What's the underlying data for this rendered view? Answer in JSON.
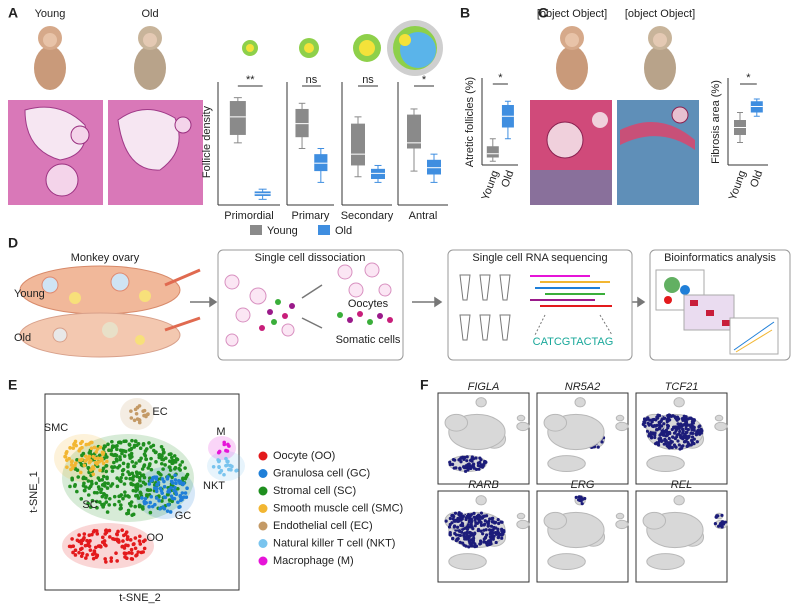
{
  "panel_a": {
    "label": "A",
    "young": "Young",
    "old": "Old",
    "y_label": "Follicle density",
    "legend": {
      "young": "Young",
      "old": "Old"
    },
    "colors": {
      "young": "#8a8a8a",
      "old": "#3f8ee0"
    },
    "plots": [
      {
        "category": "Primordial",
        "significance": "**",
        "young": {
          "min": 0.55,
          "q1": 0.62,
          "median": 0.78,
          "q3": 0.92,
          "max": 0.95
        },
        "old": {
          "min": 0.05,
          "q1": 0.08,
          "median": 0.1,
          "q3": 0.12,
          "max": 0.14
        }
      },
      {
        "category": "Primary",
        "significance": "ns",
        "young": {
          "min": 0.5,
          "q1": 0.6,
          "median": 0.72,
          "q3": 0.85,
          "max": 0.9
        },
        "old": {
          "min": 0.2,
          "q1": 0.3,
          "median": 0.37,
          "q3": 0.45,
          "max": 0.5
        }
      },
      {
        "category": "Secondary",
        "significance": "ns",
        "young": {
          "min": 0.25,
          "q1": 0.35,
          "median": 0.45,
          "q3": 0.72,
          "max": 0.78
        },
        "old": {
          "min": 0.2,
          "q1": 0.23,
          "median": 0.28,
          "q3": 0.32,
          "max": 0.35
        }
      },
      {
        "category": "Antral",
        "significance": "*",
        "young": {
          "min": 0.3,
          "q1": 0.5,
          "median": 0.55,
          "q3": 0.8,
          "max": 0.85
        },
        "old": {
          "min": 0.2,
          "q1": 0.27,
          "median": 0.33,
          "q3": 0.4,
          "max": 0.45
        }
      }
    ]
  },
  "panel_b": {
    "label": "B",
    "y_label": "Atretic follicles (%)",
    "categories": [
      "Young",
      "Old"
    ],
    "significance": "*",
    "young": {
      "min": 0.05,
      "q1": 0.1,
      "median": 0.15,
      "q3": 0.25,
      "max": 0.35
    },
    "old": {
      "min": 0.35,
      "q1": 0.5,
      "median": 0.65,
      "q3": 0.8,
      "max": 0.85
    }
  },
  "panel_c": {
    "label": "C",
    "young": {
      "min": 0.3,
      "q1": 0.4,
      "median": 0.5,
      "q3": 0.6,
      "max": 0.7
    },
    "old": {
      "min": 0.65,
      "q1": 0.7,
      "median": 0.78,
      "q3": 0.85,
      "max": 0.88
    },
    "y_label": "Fibrosis area (%)",
    "categories": [
      "Young",
      "Old"
    ],
    "significance": "*"
  },
  "panel_d": {
    "label": "D",
    "ovary_title": "Monkey ovary",
    "young": "Young",
    "old": "Old",
    "steps": [
      "Single cell dissociation",
      "Single cell RNA sequencing",
      "Bioinformatics analysis"
    ],
    "oocytes": "Oocytes",
    "somatic": "Somatic cells",
    "sequence": "CATCGTACTAG"
  },
  "panel_e": {
    "label": "E",
    "x_label": "t-SNE_2",
    "y_label": "t-SNE_1",
    "legend": [
      {
        "name": "Oocyte (OO)",
        "color": "#e31a1c"
      },
      {
        "name": "Granulosa cell (GC)",
        "color": "#1f7fd8"
      },
      {
        "name": "Stromal cell (SC)",
        "color": "#1f8f1f"
      },
      {
        "name": "Smooth muscle cell (SMC)",
        "color": "#f2b632"
      },
      {
        "name": "Endothelial cell (EC)",
        "color": "#c49a66"
      },
      {
        "name": "Natural killer T cell (NKT)",
        "color": "#79c4ee"
      },
      {
        "name": "Macrophage (M)",
        "color": "#e614d8"
      }
    ],
    "cluster_labels": [
      "OO",
      "GC",
      "SC",
      "SMC",
      "EC",
      "NKT",
      "M"
    ]
  },
  "panel_f": {
    "label": "F",
    "genes": [
      "FIGLA",
      "NR5A2",
      "TCF21",
      "RARB",
      "ERG",
      "REL"
    ]
  }
}
